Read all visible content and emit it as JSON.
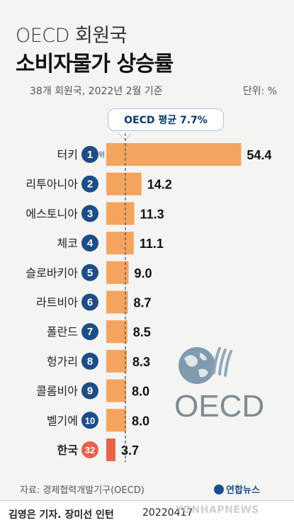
{
  "chart_data": {
    "type": "bar",
    "orientation": "horizontal",
    "title_line1": "OECD 회원국",
    "title_line2": "소비자물가 상승률",
    "subtitle": "38개 회원국, 2022년 2월 기준",
    "unit": "단위: %",
    "average_label": "OECD 평균 7.7%",
    "average_value": 7.7,
    "categories": [
      "터키",
      "리투아니아",
      "에스토니아",
      "체코",
      "슬로바키아",
      "라트비아",
      "폴란드",
      "헝가리",
      "콜롬비아",
      "벨기에",
      "한국"
    ],
    "ranks": [
      "1",
      "2",
      "3",
      "4",
      "5",
      "6",
      "7",
      "8",
      "9",
      "10",
      "32"
    ],
    "rank_suffix_first": "위",
    "values": [
      54.4,
      14.2,
      11.3,
      11.1,
      9.0,
      8.7,
      8.5,
      8.3,
      8.0,
      8.0,
      3.7
    ],
    "value_labels": [
      "54.4",
      "14.2",
      "11.3",
      "11.1",
      "9.0",
      "8.7",
      "8.5",
      "8.3",
      "8.0",
      "8.0",
      "3.7"
    ],
    "highlight": "한국",
    "colors": {
      "bar": "#f4a45e",
      "highlight_bar": "#e8624a",
      "rank_circle": "#1d4d86",
      "highlight_rank": "#e8624a",
      "avg_line": "#555555"
    }
  },
  "source": "자료: 경제협력개발기구(OECD)",
  "brand": "연합뉴스",
  "logo_text": "OECD",
  "credit": "김영은 기자. 장미선 인턴",
  "date": "20220417",
  "watermark": "YONHAPNEWS"
}
